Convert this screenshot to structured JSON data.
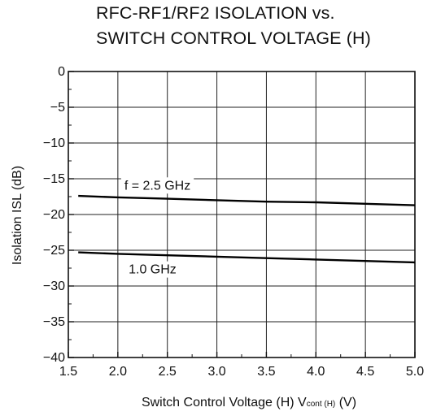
{
  "chart_data": {
    "type": "line",
    "title_lines": [
      "RFC-RF1/RF2 ISOLATION vs.",
      "SWITCH CONTROL VOLTAGE (H)"
    ],
    "xlabel": "Switch Control Voltage (H)  V",
    "xlabel_sub": "cont (H)",
    "xlabel_unit": " (V)",
    "ylabel": "Isolation  ISL (dB)",
    "xlim": [
      1.5,
      5.0
    ],
    "ylim": [
      -40,
      0
    ],
    "x_ticks": [
      1.5,
      2.0,
      2.5,
      3.0,
      3.5,
      4.0,
      4.5,
      5.0
    ],
    "x_tick_labels": [
      "1.5",
      "2.0",
      "2.5",
      "3.0",
      "3.5",
      "4.0",
      "4.5",
      "5.0"
    ],
    "y_ticks": [
      0,
      -5,
      -10,
      -15,
      -20,
      -25,
      -30,
      -35,
      -40
    ],
    "y_tick_labels": [
      "0",
      "−5",
      "−10",
      "−15",
      "−20",
      "−25",
      "−30",
      "−35",
      "−40"
    ],
    "grid": true,
    "series": [
      {
        "name": "f = 2.5 GHz",
        "x": [
          1.6,
          2.0,
          2.5,
          3.0,
          3.5,
          4.0,
          4.5,
          5.0
        ],
        "y": [
          -17.4,
          -17.6,
          -17.8,
          -18.0,
          -18.2,
          -18.3,
          -18.5,
          -18.7
        ]
      },
      {
        "name": "1.0 GHz",
        "x": [
          1.6,
          2.0,
          2.5,
          3.0,
          3.5,
          4.0,
          4.5,
          5.0
        ],
        "y": [
          -25.3,
          -25.5,
          -25.7,
          -25.9,
          -26.1,
          -26.3,
          -26.5,
          -26.7
        ]
      }
    ],
    "annotations": [
      {
        "text": "f = 2.5 GHz",
        "series": 0
      },
      {
        "text": "1.0 GHz",
        "series": 1
      }
    ]
  }
}
